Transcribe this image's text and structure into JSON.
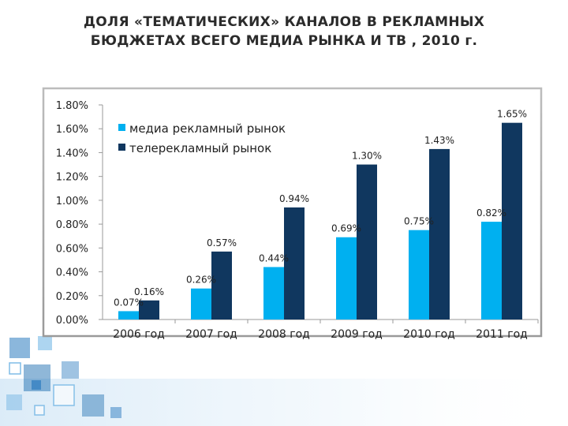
{
  "title": {
    "line1": "ДОЛЯ «ТЕМАТИЧЕСКИХ» КАНАЛОВ В РЕКЛАМНЫХ",
    "line2": "БЮДЖЕТАХ ВСЕГО МЕДИА РЫНКА И ТВ , 2010 г."
  },
  "colors": {
    "series1": "#00b0f0",
    "series2": "#10375f",
    "text": "#222222",
    "frame": "#a0a0a0",
    "decor": "#2b7bbf"
  },
  "chart_data": {
    "type": "bar",
    "categories": [
      "2006 год",
      "2007 год",
      "2008 год",
      "2009 год",
      "2010 год",
      "2011 год"
    ],
    "series": [
      {
        "name": "медиа рекламный рынок",
        "values": [
          0.07,
          0.26,
          0.44,
          0.69,
          0.75,
          0.82
        ],
        "labels": [
          "0.07%",
          "0.26%",
          "0.44%",
          "0.69%",
          "0.75%",
          "0.82%"
        ]
      },
      {
        "name": "телерекламный рынок",
        "values": [
          0.16,
          0.57,
          0.94,
          1.3,
          1.43,
          1.65
        ],
        "labels": [
          "0.16%",
          "0.57%",
          "0.94%",
          "1.30%",
          "1.43%",
          "1.65%"
        ]
      }
    ],
    "yticks": [
      "0.00%",
      "0.20%",
      "0.40%",
      "0.60%",
      "0.80%",
      "1.00%",
      "1.20%",
      "1.40%",
      "1.60%",
      "1.80%"
    ],
    "ylim": [
      0,
      1.8
    ],
    "legend_position": "top-left",
    "grid": false,
    "xlabel": "",
    "ylabel": ""
  }
}
